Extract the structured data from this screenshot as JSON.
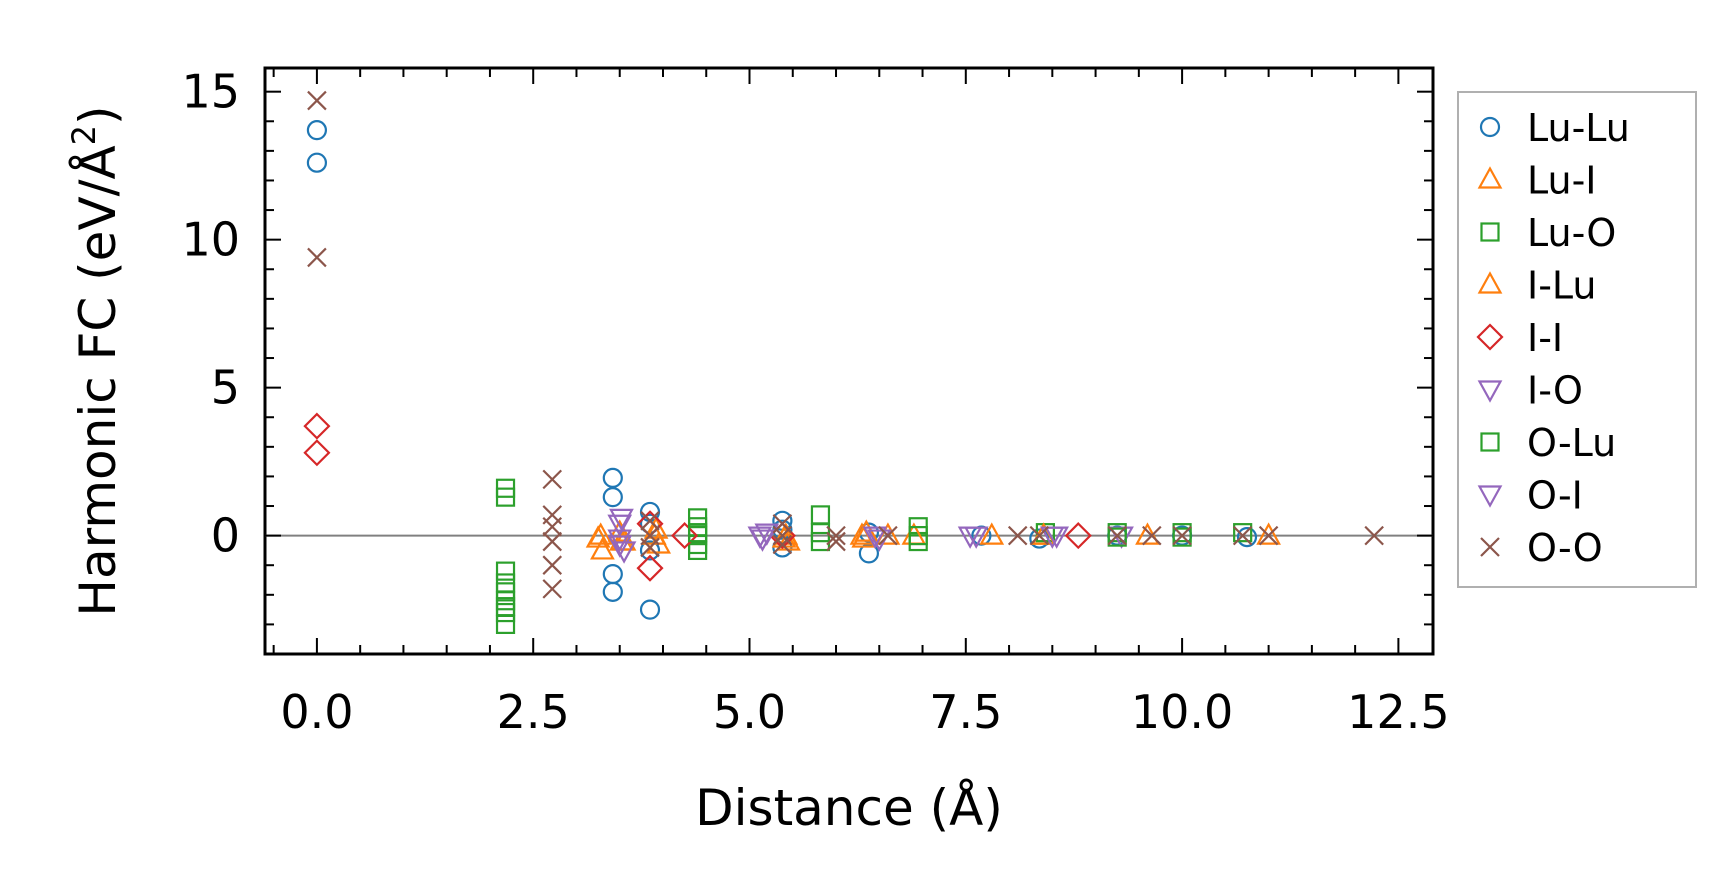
{
  "chart_data": {
    "type": "scatter",
    "title": "",
    "xlabel": "Distance (Å)",
    "ylabel_prefix": "Harmonic FC (eV/Å",
    "ylabel_sup": "2",
    "ylabel_suffix": ")",
    "xlim": [
      -0.6,
      12.9
    ],
    "ylim": [
      -4.0,
      15.8
    ],
    "xticks": [
      0.0,
      2.5,
      5.0,
      7.5,
      10.0,
      12.5
    ],
    "xtick_labels": [
      "0.0",
      "2.5",
      "5.0",
      "7.5",
      "10.0",
      "12.5"
    ],
    "yticks": [
      0,
      5,
      10,
      15
    ],
    "ytick_labels": [
      "0",
      "5",
      "10",
      "15"
    ],
    "zero_line": true,
    "grid": false,
    "legend_position": "outside-right",
    "series": [
      {
        "name": "Lu-Lu",
        "marker": "circle",
        "color": "#1f77b4",
        "points": [
          [
            0,
            13.7
          ],
          [
            0,
            12.6
          ],
          [
            3.42,
            1.95
          ],
          [
            3.42,
            1.3
          ],
          [
            3.42,
            -1.3
          ],
          [
            3.42,
            -1.9
          ],
          [
            3.85,
            0.8
          ],
          [
            3.85,
            0.4
          ],
          [
            3.85,
            -0.5
          ],
          [
            3.85,
            -2.5
          ],
          [
            5.38,
            0.5
          ],
          [
            5.38,
            0.2
          ],
          [
            5.38,
            -0.4
          ],
          [
            6.38,
            -0.6
          ],
          [
            6.38,
            0.1
          ],
          [
            7.68,
            0.0
          ],
          [
            8.35,
            -0.1
          ],
          [
            9.25,
            0.0
          ],
          [
            10.0,
            0.0
          ],
          [
            10.75,
            -0.05
          ]
        ]
      },
      {
        "name": "Lu-I",
        "marker": "triangle-up",
        "color": "#ff7f0e",
        "points": [
          [
            3.25,
            -0.1
          ],
          [
            3.3,
            -0.5
          ],
          [
            3.5,
            0.1
          ],
          [
            3.55,
            -0.2
          ],
          [
            3.92,
            0.2
          ],
          [
            3.95,
            -0.3
          ],
          [
            5.42,
            0.0
          ],
          [
            5.45,
            -0.2
          ],
          [
            6.3,
            0.0
          ],
          [
            6.35,
            0.1
          ],
          [
            6.6,
            0.0
          ],
          [
            7.8,
            0.0
          ],
          [
            8.4,
            0.0
          ],
          [
            9.6,
            0.0
          ],
          [
            11.0,
            0.0
          ]
        ]
      },
      {
        "name": "Lu-O",
        "marker": "square",
        "color": "#2ca02c",
        "points": [
          [
            2.18,
            1.6
          ],
          [
            2.18,
            1.3
          ],
          [
            2.18,
            -1.2
          ],
          [
            2.18,
            -1.6
          ],
          [
            2.18,
            -1.9
          ],
          [
            2.18,
            -2.2
          ],
          [
            2.18,
            -2.6
          ],
          [
            2.18,
            -3.0
          ],
          [
            4.4,
            0.6
          ],
          [
            4.4,
            0.3
          ],
          [
            4.4,
            0.0
          ],
          [
            4.4,
            -0.3
          ],
          [
            4.4,
            -0.5
          ],
          [
            5.82,
            0.7
          ],
          [
            5.82,
            -0.2
          ],
          [
            6.95,
            0.3
          ],
          [
            6.95,
            -0.2
          ],
          [
            8.42,
            0.1
          ],
          [
            9.25,
            0.1
          ],
          [
            10.0,
            0.1
          ],
          [
            10.7,
            0.1
          ]
        ]
      },
      {
        "name": "I-Lu",
        "marker": "triangle-up",
        "color": "#ff7f0e",
        "points": [
          [
            3.28,
            0.0
          ],
          [
            3.52,
            -0.2
          ],
          [
            3.9,
            0.0
          ],
          [
            5.4,
            -0.1
          ],
          [
            6.32,
            -0.1
          ],
          [
            6.9,
            0.0
          ],
          [
            8.4,
            0.0
          ]
        ]
      },
      {
        "name": "I-I",
        "marker": "diamond",
        "color": "#d62728",
        "points": [
          [
            0,
            3.7
          ],
          [
            0,
            2.8
          ],
          [
            3.85,
            -1.1
          ],
          [
            3.85,
            0.4
          ],
          [
            4.25,
            0.0
          ],
          [
            5.38,
            0.0
          ],
          [
            8.8,
            0.0
          ]
        ]
      },
      {
        "name": "I-O",
        "marker": "triangle-down",
        "color": "#9467bd",
        "points": [
          [
            3.5,
            0.4
          ],
          [
            3.5,
            -0.1
          ],
          [
            3.5,
            -0.3
          ],
          [
            5.12,
            0.0
          ],
          [
            5.2,
            0.1
          ],
          [
            6.45,
            0.0
          ],
          [
            7.62,
            0.0
          ],
          [
            8.5,
            0.0
          ],
          [
            9.3,
            0.0
          ]
        ]
      },
      {
        "name": "O-Lu",
        "marker": "square",
        "color": "#2ca02c",
        "points": [
          [
            2.18,
            -2.4
          ],
          [
            4.4,
            0.1
          ],
          [
            5.82,
            0.1
          ],
          [
            6.95,
            0.0
          ],
          [
            9.25,
            -0.05
          ],
          [
            10.0,
            -0.05
          ]
        ]
      },
      {
        "name": "O-I",
        "marker": "triangle-down",
        "color": "#9467bd",
        "points": [
          [
            3.52,
            0.6
          ],
          [
            3.55,
            -0.5
          ],
          [
            5.15,
            -0.1
          ],
          [
            6.5,
            -0.1
          ],
          [
            7.55,
            0.0
          ],
          [
            8.55,
            0.0
          ]
        ]
      },
      {
        "name": "O-O",
        "marker": "x",
        "color": "#8c564b",
        "points": [
          [
            0,
            14.7
          ],
          [
            0,
            9.4
          ],
          [
            2.72,
            1.9
          ],
          [
            2.72,
            0.7
          ],
          [
            2.72,
            0.3
          ],
          [
            2.72,
            -0.2
          ],
          [
            2.72,
            -1.0
          ],
          [
            2.72,
            -1.8
          ],
          [
            3.85,
            0.5
          ],
          [
            3.85,
            0.0
          ],
          [
            3.85,
            -0.4
          ],
          [
            5.38,
            0.4
          ],
          [
            5.38,
            0.0
          ],
          [
            5.38,
            -0.3
          ],
          [
            6.0,
            0.0
          ],
          [
            6.0,
            -0.2
          ],
          [
            6.6,
            0.0
          ],
          [
            8.1,
            0.0
          ],
          [
            8.35,
            0.0
          ],
          [
            9.25,
            0.0
          ],
          [
            9.65,
            0.0
          ],
          [
            10.0,
            0.0
          ],
          [
            10.7,
            0.0
          ],
          [
            11.0,
            0.0
          ],
          [
            12.22,
            0.0
          ]
        ]
      }
    ]
  }
}
